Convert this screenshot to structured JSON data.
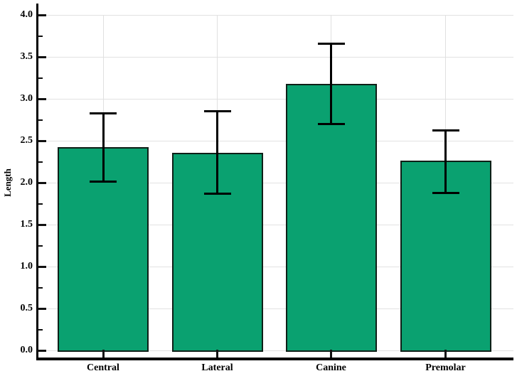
{
  "chart_data": {
    "type": "bar",
    "title": "",
    "ylabel": "Length",
    "xlabel": "",
    "categories": [
      "Central",
      "Lateral",
      "Canine",
      "Premolar"
    ],
    "values": [
      2.42,
      2.36,
      3.18,
      2.26
    ],
    "error_bar_upper": [
      2.83,
      2.85,
      3.66,
      2.62
    ],
    "error_bar_lower": [
      2.01,
      1.87,
      2.7,
      1.88
    ],
    "ylim": [
      0.0,
      4.0
    ],
    "ytick_step": 0.5,
    "yminor_tick_step": 0.25,
    "ytick_labels": [
      "0.0",
      "0.5",
      "1.0",
      "1.5",
      "2.0",
      "2.5",
      "3.0",
      "3.5",
      "4.0"
    ],
    "grid": true,
    "legend": "none",
    "bar_fill_color": "#0aa170",
    "bar_border_color": "#0e1f17",
    "error_bar_color": "#000000",
    "axis_color": "#000000",
    "gridline_color": "#e2e2e2"
  }
}
